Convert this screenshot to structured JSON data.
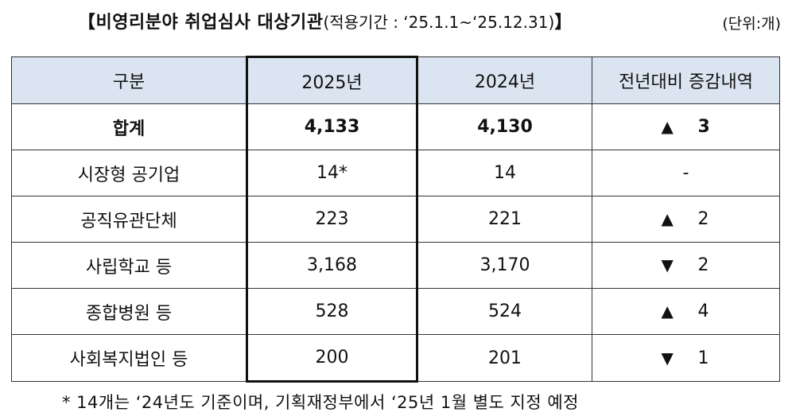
{
  "title": {
    "main": "【비영리분야 취업심사 대상기관",
    "period": "(적용기간 : ‘25.1.1~‘25.12.31)",
    "close": "】"
  },
  "unit": "(단위:개)",
  "table": {
    "headers": [
      "구분",
      "2025년",
      "2024년",
      "전년대비 증감내역"
    ],
    "rows": [
      {
        "category": "합계",
        "y2025": "4,133",
        "y2024": "4,130",
        "direction": "▲",
        "change": "3"
      },
      {
        "category": "시장형 공기업",
        "y2025": "14*",
        "y2024": "14",
        "direction": "",
        "change": "-"
      },
      {
        "category": "공직유관단체",
        "y2025": "223",
        "y2024": "221",
        "direction": "▲",
        "change": "2"
      },
      {
        "category": "사립학교 등",
        "y2025": "3,168",
        "y2024": "3,170",
        "direction": "▼",
        "change": "2"
      },
      {
        "category": "종합병원 등",
        "y2025": "528",
        "y2024": "524",
        "direction": "▲",
        "change": "4"
      },
      {
        "category": "사회복지법인 등",
        "y2025": "200",
        "y2024": "201",
        "direction": "▼",
        "change": "1"
      }
    ]
  },
  "footnote": "* 14개는 ‘24년도 기준이며, 기획재정부에서 ‘25년 1월 별도 지정 예정",
  "colors": {
    "header_bg": "#dbe5f1",
    "border": "#333333",
    "highlight_border": "#111111"
  }
}
